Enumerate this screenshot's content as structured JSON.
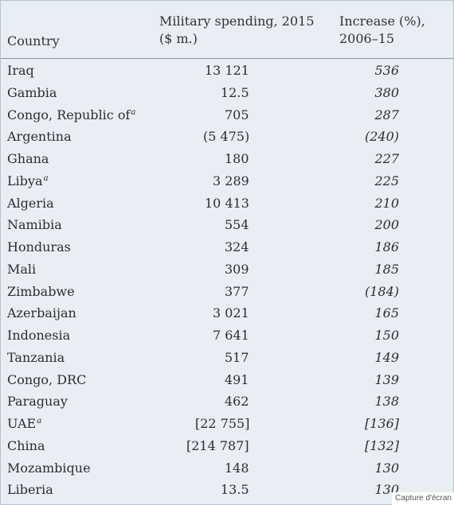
{
  "table": {
    "headers": {
      "country": "Country",
      "spending": "Military spending, 2015 ($ m.)",
      "increase": "Increase (%), 2006–15"
    },
    "rows": [
      {
        "country": "Iraq",
        "note": "",
        "spending": "13 121",
        "increase": "536"
      },
      {
        "country": "Gambia",
        "note": "",
        "spending": "12.5",
        "increase": "380"
      },
      {
        "country": "Congo, Republic of",
        "note": "a",
        "spending": "705",
        "increase": "287"
      },
      {
        "country": "Argentina",
        "note": "",
        "spending": "(5 475)",
        "increase": "(240)"
      },
      {
        "country": "Ghana",
        "note": "",
        "spending": "180",
        "increase": "227"
      },
      {
        "country": "Libya",
        "note": "a",
        "spending": "3 289",
        "increase": "225"
      },
      {
        "country": "Algeria",
        "note": "",
        "spending": "10 413",
        "increase": "210"
      },
      {
        "country": "Namibia",
        "note": "",
        "spending": "554",
        "increase": "200"
      },
      {
        "country": "Honduras",
        "note": "",
        "spending": "324",
        "increase": "186"
      },
      {
        "country": "Mali",
        "note": "",
        "spending": "309",
        "increase": "185"
      },
      {
        "country": "Zimbabwe",
        "note": "",
        "spending": "377",
        "increase": "(184)"
      },
      {
        "country": "Azerbaijan",
        "note": "",
        "spending": "3 021",
        "increase": "165"
      },
      {
        "country": "Indonesia",
        "note": "",
        "spending": "7 641",
        "increase": "150"
      },
      {
        "country": "Tanzania",
        "note": "",
        "spending": "517",
        "increase": "149"
      },
      {
        "country": "Congo, DRC",
        "note": "",
        "spending": "491",
        "increase": "139"
      },
      {
        "country": "Paraguay",
        "note": "",
        "spending": "462",
        "increase": "138"
      },
      {
        "country": "UAE",
        "note": "a",
        "spending": "[22 755]",
        "increase": "[136]"
      },
      {
        "country": "China",
        "note": "",
        "spending": "[214 787]",
        "increase": "[132]"
      },
      {
        "country": "Mozambique",
        "note": "",
        "spending": "148",
        "increase": "130"
      },
      {
        "country": "Liberia",
        "note": "",
        "spending": "13.5",
        "increase": "130"
      }
    ]
  },
  "caption": "Capture d'écran",
  "colors": {
    "background": "#e9edf4",
    "rule": "#8a93a3",
    "text": "#2e2e2e"
  }
}
